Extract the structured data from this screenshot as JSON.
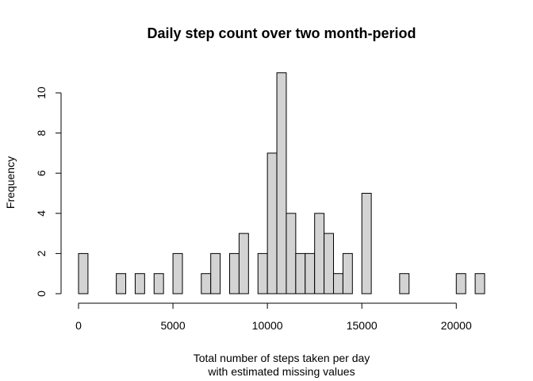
{
  "chart_data": {
    "type": "bar",
    "title": "Daily step count over two month-period",
    "xlabel": "Total number of steps taken per day",
    "xlabel_line2": "with estimated missing values",
    "ylabel": "Frequency",
    "bin_width": 500,
    "bins": [
      {
        "start": 0,
        "end": 500,
        "count": 2
      },
      {
        "start": 2000,
        "end": 2500,
        "count": 1
      },
      {
        "start": 3000,
        "end": 3500,
        "count": 1
      },
      {
        "start": 4000,
        "end": 4500,
        "count": 1
      },
      {
        "start": 5000,
        "end": 5500,
        "count": 2
      },
      {
        "start": 6500,
        "end": 7000,
        "count": 1
      },
      {
        "start": 7000,
        "end": 7500,
        "count": 2
      },
      {
        "start": 8000,
        "end": 8500,
        "count": 2
      },
      {
        "start": 8500,
        "end": 9000,
        "count": 3
      },
      {
        "start": 9500,
        "end": 10000,
        "count": 2
      },
      {
        "start": 10000,
        "end": 10500,
        "count": 7
      },
      {
        "start": 10500,
        "end": 11000,
        "count": 11
      },
      {
        "start": 11000,
        "end": 11500,
        "count": 4
      },
      {
        "start": 11500,
        "end": 12000,
        "count": 2
      },
      {
        "start": 12000,
        "end": 12500,
        "count": 2
      },
      {
        "start": 12500,
        "end": 13000,
        "count": 4
      },
      {
        "start": 13000,
        "end": 13500,
        "count": 3
      },
      {
        "start": 13500,
        "end": 14000,
        "count": 1
      },
      {
        "start": 14000,
        "end": 14500,
        "count": 2
      },
      {
        "start": 15000,
        "end": 15500,
        "count": 5
      },
      {
        "start": 17000,
        "end": 17500,
        "count": 1
      },
      {
        "start": 20000,
        "end": 20500,
        "count": 1
      },
      {
        "start": 21000,
        "end": 21500,
        "count": 1
      }
    ],
    "xlim": [
      0,
      21500
    ],
    "ylim": [
      0,
      11
    ],
    "xticks": [
      "0",
      "5000",
      "10000",
      "15000",
      "20000"
    ],
    "yticks": [
      "0",
      "2",
      "4",
      "6",
      "8",
      "10"
    ],
    "grid": false,
    "colors": {
      "bar_fill": "#d3d3d3",
      "bar_stroke": "#000000"
    }
  }
}
